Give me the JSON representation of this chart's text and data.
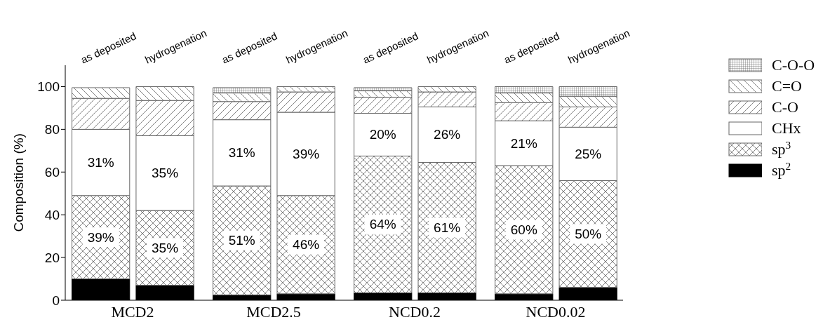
{
  "chart_data": {
    "type": "bar",
    "stacked": true,
    "ylabel": "Composition (%)",
    "categories": [
      "as deposited",
      "hydrogenation",
      "as deposited",
      "hydrogenation",
      "as deposited",
      "hydrogenation",
      "as deposited",
      "hydrogenation"
    ],
    "annotations": [
      "MCD2",
      "MCD2.5",
      "NCD0.2",
      "NCD0.02"
    ],
    "series": [
      {
        "name": "sp$^{2}$",
        "color": "#000000",
        "values": [
          10,
          7,
          2.5,
          3,
          3.5,
          3.5,
          3,
          6
        ]
      },
      {
        "name": "sp$^{3}$",
        "color": "#666666",
        "values": [
          39,
          35,
          51,
          46,
          64,
          61,
          60,
          50
        ],
        "value_labels": [
          "39%",
          "35%",
          "51%",
          "46%",
          "64%",
          "61%",
          "60%",
          "50%"
        ]
      },
      {
        "name": "CHx",
        "color": "#666666",
        "values": [
          31,
          35,
          31,
          39,
          20,
          26,
          21,
          25
        ],
        "value_labels": [
          "31%",
          "35%",
          "31%",
          "39%",
          "20%",
          "26%",
          "21%",
          "25%"
        ]
      },
      {
        "name": "C-O",
        "color": "#666666",
        "values": [
          14.5,
          16.5,
          8.5,
          9.5,
          7.5,
          7,
          8.5,
          9.5
        ]
      },
      {
        "name": "C=O",
        "color": "#666666",
        "values": [
          5,
          6.5,
          4,
          2.5,
          3,
          2.5,
          4.5,
          5
        ]
      },
      {
        "name": "C-O-O",
        "color": "#666666",
        "values": [
          null,
          null,
          2.5,
          null,
          1.5,
          null,
          3,
          4.5
        ]
      }
    ],
    "ylim": [
      0,
      110
    ],
    "yticks": [
      0,
      20,
      40,
      60,
      80,
      100
    ],
    "grid": false,
    "legend": "right"
  }
}
